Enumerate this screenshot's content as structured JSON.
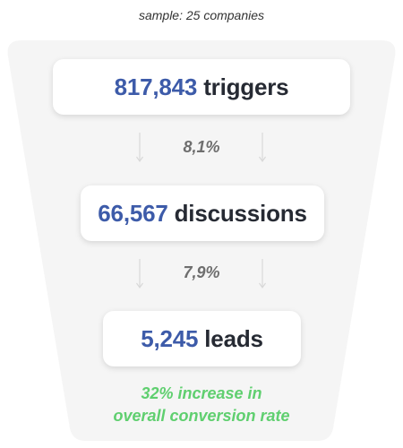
{
  "sample_note": "sample: 25 companies",
  "stages": [
    {
      "value": "817,843",
      "label": "triggers"
    },
    {
      "value": "66,567",
      "label": "discussions"
    },
    {
      "value": "5,245",
      "label": "leads"
    }
  ],
  "rates": [
    "8,1%",
    "7,9%"
  ],
  "summary": {
    "line1": "32% increase in",
    "line2": "overall conversion rate"
  },
  "colors": {
    "value": "#3d5ba9",
    "label": "#262a33",
    "rate": "#6e6e6e",
    "summary": "#5fcf6f",
    "funnel": "#f5f5f5"
  },
  "icons": [
    "down-arrow-icon"
  ]
}
